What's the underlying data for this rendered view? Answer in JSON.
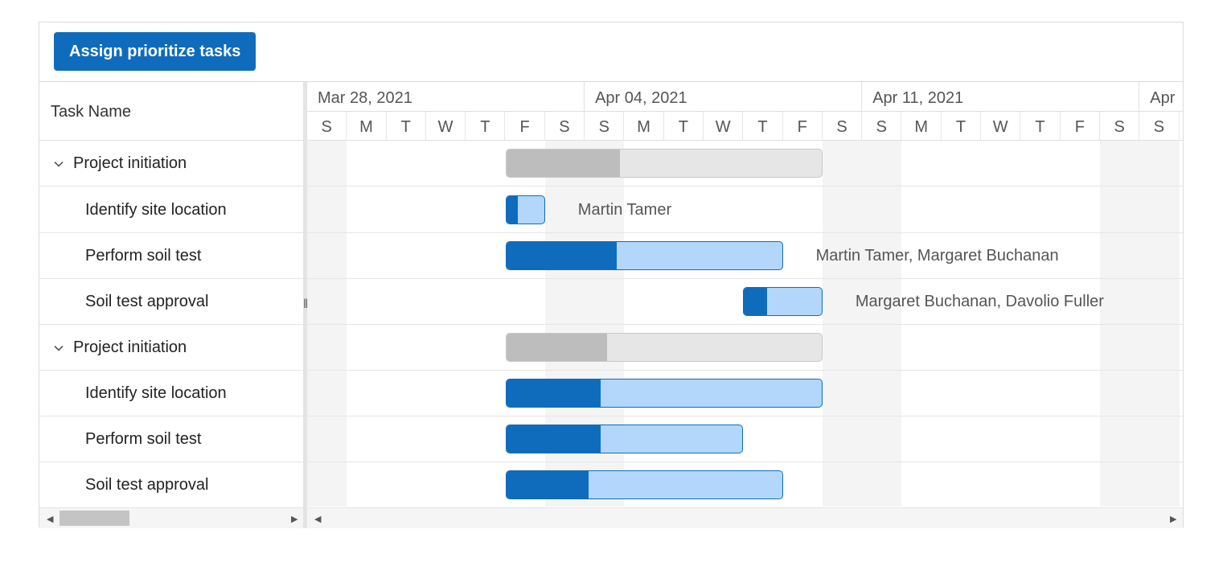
{
  "toolbar": {
    "button_label": "Assign prioritize tasks"
  },
  "grid": {
    "header": "Task Name",
    "rows": [
      {
        "name": "Project initiation",
        "parent": true
      },
      {
        "name": "Identify site location",
        "parent": false
      },
      {
        "name": "Perform soil test",
        "parent": false
      },
      {
        "name": "Soil test approval",
        "parent": false
      },
      {
        "name": "Project initiation",
        "parent": true
      },
      {
        "name": "Identify site location",
        "parent": false
      },
      {
        "name": "Perform soil test",
        "parent": false
      },
      {
        "name": "Soil test approval",
        "parent": false
      }
    ]
  },
  "timeline": {
    "weeks": [
      "Mar 28, 2021",
      "Apr 04, 2021",
      "Apr 11, 2021",
      "Apr"
    ],
    "days": [
      "S",
      "M",
      "T",
      "W",
      "T",
      "F",
      "S",
      "S",
      "M",
      "T",
      "W",
      "T",
      "F",
      "S",
      "S",
      "M",
      "T",
      "W",
      "T",
      "F",
      "S",
      "S"
    ]
  },
  "bars": [
    {
      "start": "2021-04-02",
      "end": "2021-04-09",
      "progress": 0.36,
      "parent": true,
      "resource": ""
    },
    {
      "start": "2021-04-02",
      "end": "2021-04-02",
      "progress": 0.3,
      "parent": false,
      "resource": "Martin Tamer"
    },
    {
      "start": "2021-04-02",
      "end": "2021-04-08",
      "progress": 0.4,
      "parent": false,
      "resource": "Martin Tamer, Margaret Buchanan"
    },
    {
      "start": "2021-04-08",
      "end": "2021-04-09",
      "progress": 0.3,
      "parent": false,
      "resource": "Margaret Buchanan, Davolio Fuller"
    },
    {
      "start": "2021-04-02",
      "end": "2021-04-09",
      "progress": 0.32,
      "parent": true,
      "resource": ""
    },
    {
      "start": "2021-04-02",
      "end": "2021-04-09",
      "progress": 0.3,
      "parent": false,
      "resource": ""
    },
    {
      "start": "2021-04-02",
      "end": "2021-04-07",
      "progress": 0.4,
      "parent": false,
      "resource": ""
    },
    {
      "start": "2021-04-02",
      "end": "2021-04-08",
      "progress": 0.3,
      "parent": false,
      "resource": ""
    }
  ],
  "icons": {
    "expand": "chevron-down-icon",
    "scroll_left": "arrow-left-icon",
    "scroll_right": "arrow-right-icon",
    "splitter": "resize-grip-icon"
  },
  "colors": {
    "accent": "#0f6cbd",
    "child_bar": "#b3d6fb",
    "parent_bar": "#e6e6e6",
    "parent_progress": "#bdbdbd",
    "weekend": "#f4f4f4"
  }
}
